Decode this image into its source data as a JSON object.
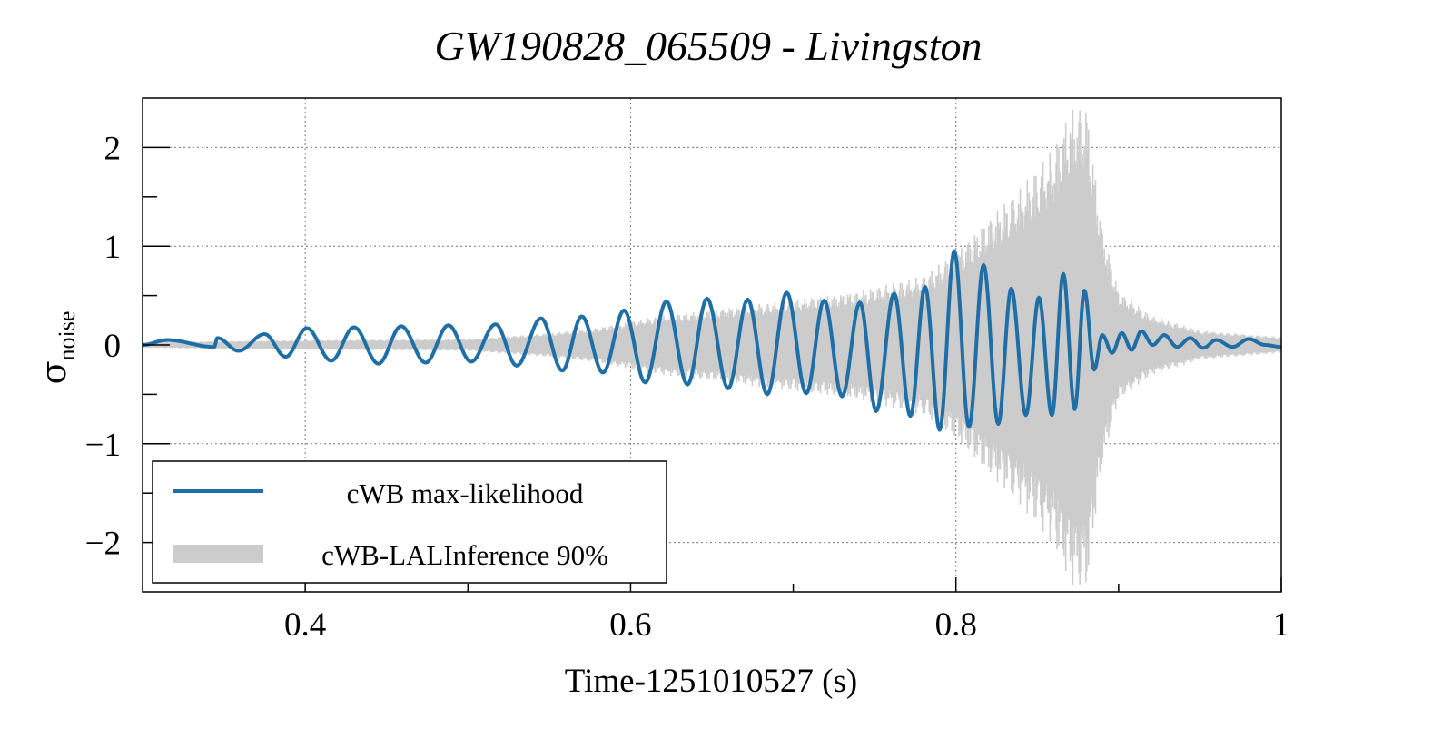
{
  "chart_data": {
    "type": "line",
    "title": "GW190828_065509 - Livingston",
    "xlabel": "Time-1251010527 (s)",
    "ylabel_main": "σ",
    "ylabel_sub": "noise",
    "xlim": [
      0.3,
      1.0
    ],
    "ylim": [
      -2.5,
      2.5
    ],
    "xticks": [
      0.4,
      0.6,
      0.8,
      1.0
    ],
    "xtick_labels": [
      "0.4",
      "0.6",
      "0.8",
      "1"
    ],
    "yticks": [
      -2,
      -1,
      0,
      1,
      2
    ],
    "ytick_labels": [
      "−2",
      "−1",
      "0",
      "1",
      "2"
    ],
    "grid": true,
    "legend_position": "bottom-left",
    "series": [
      {
        "name": "cWB max-likelihood",
        "kind": "line",
        "color": "#1f6fa6",
        "peaks": [
          [
            0.315,
            0.05
          ],
          [
            0.344,
            -0.02
          ],
          [
            0.346,
            0.07
          ],
          [
            0.359,
            -0.06
          ],
          [
            0.375,
            0.11
          ],
          [
            0.388,
            -0.12
          ],
          [
            0.401,
            0.17
          ],
          [
            0.416,
            -0.16
          ],
          [
            0.43,
            0.18
          ],
          [
            0.445,
            -0.19
          ],
          [
            0.459,
            0.19
          ],
          [
            0.474,
            -0.18
          ],
          [
            0.488,
            0.2
          ],
          [
            0.502,
            -0.17
          ],
          [
            0.517,
            0.21
          ],
          [
            0.53,
            -0.21
          ],
          [
            0.545,
            0.27
          ],
          [
            0.558,
            -0.26
          ],
          [
            0.57,
            0.29
          ],
          [
            0.583,
            -0.28
          ],
          [
            0.596,
            0.35
          ],
          [
            0.609,
            -0.38
          ],
          [
            0.622,
            0.44
          ],
          [
            0.635,
            -0.4
          ],
          [
            0.647,
            0.47
          ],
          [
            0.66,
            -0.44
          ],
          [
            0.672,
            0.46
          ],
          [
            0.684,
            -0.5
          ],
          [
            0.696,
            0.53
          ],
          [
            0.708,
            -0.49
          ],
          [
            0.719,
            0.45
          ],
          [
            0.73,
            -0.52
          ],
          [
            0.741,
            0.43
          ],
          [
            0.751,
            -0.67
          ],
          [
            0.762,
            0.52
          ],
          [
            0.772,
            -0.72
          ],
          [
            0.781,
            0.59
          ],
          [
            0.79,
            -0.86
          ],
          [
            0.799,
            0.95
          ],
          [
            0.808,
            -0.83
          ],
          [
            0.817,
            0.81
          ],
          [
            0.826,
            -0.8
          ],
          [
            0.834,
            0.57
          ],
          [
            0.843,
            -0.71
          ],
          [
            0.851,
            0.48
          ],
          [
            0.859,
            -0.71
          ],
          [
            0.866,
            0.72
          ],
          [
            0.873,
            -0.65
          ],
          [
            0.879,
            0.55
          ],
          [
            0.885,
            -0.25
          ],
          [
            0.89,
            0.1
          ],
          [
            0.896,
            -0.08
          ],
          [
            0.902,
            0.12
          ],
          [
            0.908,
            -0.05
          ],
          [
            0.914,
            0.14
          ],
          [
            0.921,
            0.0
          ],
          [
            0.928,
            0.1
          ],
          [
            0.936,
            -0.02
          ],
          [
            0.944,
            0.07
          ],
          [
            0.952,
            -0.03
          ],
          [
            0.96,
            0.05
          ],
          [
            0.97,
            -0.02
          ],
          [
            0.98,
            0.06
          ],
          [
            0.99,
            0.0
          ],
          [
            1.0,
            -0.02
          ]
        ]
      },
      {
        "name": "cWB-LALInference 90%",
        "kind": "band",
        "color": "#cccccc",
        "envelope": [
          [
            0.3,
            0.03
          ],
          [
            0.4,
            0.05
          ],
          [
            0.5,
            0.06
          ],
          [
            0.55,
            0.12
          ],
          [
            0.58,
            0.18
          ],
          [
            0.62,
            0.3
          ],
          [
            0.66,
            0.38
          ],
          [
            0.7,
            0.46
          ],
          [
            0.74,
            0.55
          ],
          [
            0.78,
            0.7
          ],
          [
            0.8,
            0.95
          ],
          [
            0.82,
            1.3
          ],
          [
            0.84,
            1.6
          ],
          [
            0.86,
            2.0
          ],
          [
            0.87,
            2.4
          ],
          [
            0.88,
            2.5
          ],
          [
            0.89,
            1.2
          ],
          [
            0.9,
            0.55
          ],
          [
            0.92,
            0.3
          ],
          [
            0.95,
            0.15
          ],
          [
            1.0,
            0.08
          ]
        ]
      }
    ]
  }
}
